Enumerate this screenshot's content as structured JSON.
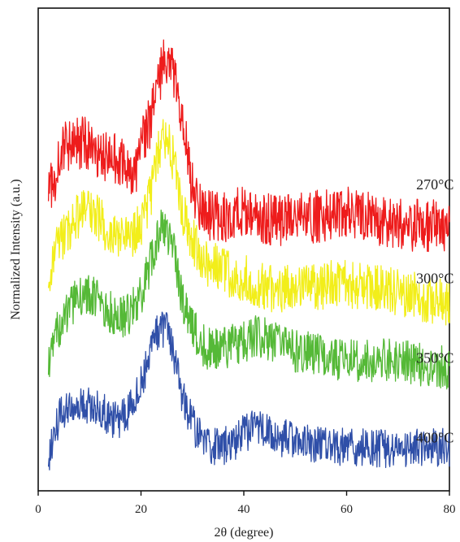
{
  "chart_data": {
    "type": "line",
    "title": "",
    "xlabel": "2θ (degree)",
    "ylabel": "Normalized Intensity (a.u.)",
    "xlim": [
      0,
      80
    ],
    "x_ticks": [
      "0",
      "20",
      "40",
      "60",
      "80"
    ],
    "y_ticks_labeled": false,
    "y_unit": "a.u. (normalized, offset stacked)",
    "ylim": [
      0,
      1
    ],
    "grid": false,
    "legend": "none; series labels placed at right of each trace",
    "series": [
      {
        "name": "270°C",
        "color": "#ee1c1c",
        "noise": 0.055,
        "points": [
          [
            2,
            0.62
          ],
          [
            3,
            0.64
          ],
          [
            4,
            0.68
          ],
          [
            5,
            0.72
          ],
          [
            6,
            0.71
          ],
          [
            8,
            0.72
          ],
          [
            10,
            0.72
          ],
          [
            12,
            0.7
          ],
          [
            14,
            0.69
          ],
          [
            16,
            0.68
          ],
          [
            18,
            0.67
          ],
          [
            19.5,
            0.67
          ],
          [
            20.5,
            0.73
          ],
          [
            22,
            0.77
          ],
          [
            23,
            0.82
          ],
          [
            24,
            0.87
          ],
          [
            25,
            0.9
          ],
          [
            26,
            0.88
          ],
          [
            27,
            0.83
          ],
          [
            28,
            0.77
          ],
          [
            29,
            0.7
          ],
          [
            30,
            0.63
          ],
          [
            31,
            0.6
          ],
          [
            33,
            0.57
          ],
          [
            36,
            0.57
          ],
          [
            40,
            0.575
          ],
          [
            45,
            0.56
          ],
          [
            50,
            0.56
          ],
          [
            55,
            0.57
          ],
          [
            60,
            0.58
          ],
          [
            62,
            0.575
          ],
          [
            66,
            0.56
          ],
          [
            70,
            0.55
          ],
          [
            75,
            0.55
          ],
          [
            80,
            0.545
          ]
        ]
      },
      {
        "name": "300°C",
        "color": "#f2ee1a",
        "noise": 0.05,
        "points": [
          [
            2,
            0.44
          ],
          [
            3,
            0.5
          ],
          [
            4,
            0.52
          ],
          [
            6,
            0.54
          ],
          [
            8,
            0.57
          ],
          [
            10,
            0.58
          ],
          [
            12,
            0.56
          ],
          [
            14,
            0.53
          ],
          [
            16,
            0.52
          ],
          [
            18,
            0.52
          ],
          [
            20,
            0.55
          ],
          [
            22,
            0.62
          ],
          [
            23,
            0.68
          ],
          [
            24,
            0.72
          ],
          [
            25,
            0.73
          ],
          [
            26,
            0.7
          ],
          [
            27,
            0.64
          ],
          [
            28,
            0.58
          ],
          [
            30,
            0.52
          ],
          [
            32,
            0.48
          ],
          [
            35,
            0.46
          ],
          [
            40,
            0.44
          ],
          [
            45,
            0.42
          ],
          [
            50,
            0.42
          ],
          [
            55,
            0.425
          ],
          [
            60,
            0.43
          ],
          [
            65,
            0.42
          ],
          [
            70,
            0.41
          ],
          [
            75,
            0.4
          ],
          [
            80,
            0.39
          ]
        ]
      },
      {
        "name": "350°C",
        "color": "#55b937",
        "noise": 0.045,
        "points": [
          [
            2,
            0.26
          ],
          [
            3,
            0.29
          ],
          [
            4,
            0.34
          ],
          [
            6,
            0.38
          ],
          [
            8,
            0.4
          ],
          [
            10,
            0.41
          ],
          [
            12,
            0.39
          ],
          [
            14,
            0.37
          ],
          [
            16,
            0.36
          ],
          [
            18,
            0.37
          ],
          [
            20,
            0.4
          ],
          [
            22,
            0.48
          ],
          [
            23,
            0.52
          ],
          [
            24,
            0.55
          ],
          [
            25,
            0.54
          ],
          [
            26,
            0.52
          ],
          [
            27,
            0.46
          ],
          [
            28,
            0.4
          ],
          [
            30,
            0.34
          ],
          [
            32,
            0.3
          ],
          [
            35,
            0.29
          ],
          [
            40,
            0.31
          ],
          [
            43,
            0.32
          ],
          [
            45,
            0.31
          ],
          [
            50,
            0.29
          ],
          [
            55,
            0.28
          ],
          [
            60,
            0.27
          ],
          [
            65,
            0.27
          ],
          [
            70,
            0.27
          ],
          [
            75,
            0.26
          ],
          [
            80,
            0.255
          ]
        ]
      },
      {
        "name": "400°C",
        "color": "#2f4fa8",
        "noise": 0.04,
        "points": [
          [
            2,
            0.07
          ],
          [
            3,
            0.12
          ],
          [
            4,
            0.15
          ],
          [
            6,
            0.17
          ],
          [
            8,
            0.18
          ],
          [
            10,
            0.18
          ],
          [
            12,
            0.17
          ],
          [
            14,
            0.15
          ],
          [
            16,
            0.15
          ],
          [
            18,
            0.17
          ],
          [
            20,
            0.22
          ],
          [
            22,
            0.3
          ],
          [
            23,
            0.33
          ],
          [
            24,
            0.34
          ],
          [
            25,
            0.33
          ],
          [
            26,
            0.3
          ],
          [
            27,
            0.25
          ],
          [
            28,
            0.2
          ],
          [
            30,
            0.14
          ],
          [
            32,
            0.1
          ],
          [
            35,
            0.09
          ],
          [
            38,
            0.1
          ],
          [
            40,
            0.12
          ],
          [
            43,
            0.13
          ],
          [
            45,
            0.12
          ],
          [
            50,
            0.1
          ],
          [
            55,
            0.095
          ],
          [
            60,
            0.09
          ],
          [
            65,
            0.09
          ],
          [
            70,
            0.085
          ],
          [
            75,
            0.09
          ],
          [
            80,
            0.09
          ]
        ]
      }
    ],
    "series_label_y": [
      0.625,
      0.43,
      0.265,
      0.1
    ]
  }
}
